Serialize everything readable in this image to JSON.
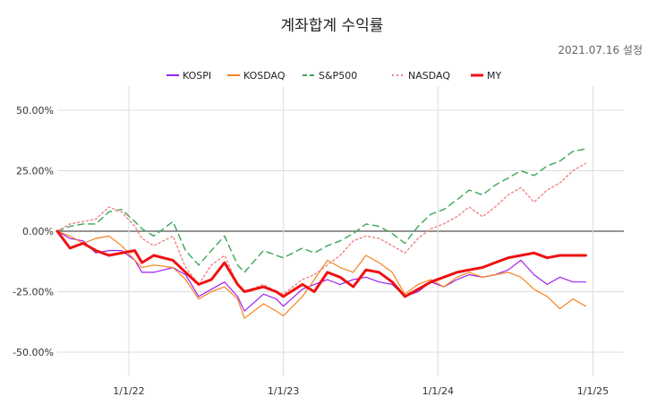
{
  "chart_data": {
    "type": "line",
    "title": "계좌합계 수익률",
    "subtitle": "2021.07.16 설정",
    "x_ticks": [
      "1/1/22",
      "1/1/23",
      "1/1/24",
      "1/1/25"
    ],
    "x_tick_dates": [
      "2022-01-01",
      "2023-01-01",
      "2024-01-01",
      "2025-01-01"
    ],
    "xlim": [
      "2021-07-16",
      "2025-03-15"
    ],
    "y_ticks": [
      "50.00%",
      "25.00%",
      "0.00%",
      "-25.00%",
      "-50.00%"
    ],
    "y_tick_values": [
      50,
      25,
      0,
      -25,
      -50
    ],
    "ylim": [
      -60,
      60
    ],
    "grid": true,
    "legend_position": "top",
    "series": [
      {
        "name": "KOSPI",
        "color": "#a020f0",
        "dash": "solid",
        "points": [
          [
            "2021-07-16",
            0
          ],
          [
            "2021-08-15",
            -3
          ],
          [
            "2021-09-15",
            -4
          ],
          [
            "2021-10-15",
            -9
          ],
          [
            "2021-11-15",
            -8
          ],
          [
            "2021-12-15",
            -8
          ],
          [
            "2022-01-15",
            -12
          ],
          [
            "2022-02-01",
            -17
          ],
          [
            "2022-03-01",
            -17
          ],
          [
            "2022-04-15",
            -15
          ],
          [
            "2022-05-15",
            -18
          ],
          [
            "2022-06-15",
            -27
          ],
          [
            "2022-07-15",
            -24
          ],
          [
            "2022-08-15",
            -21
          ],
          [
            "2022-09-15",
            -27
          ],
          [
            "2022-10-01",
            -33
          ],
          [
            "2022-11-15",
            -26
          ],
          [
            "2022-12-15",
            -28
          ],
          [
            "2023-01-01",
            -31
          ],
          [
            "2023-02-15",
            -24
          ],
          [
            "2023-03-15",
            -22
          ],
          [
            "2023-04-15",
            -20
          ],
          [
            "2023-05-15",
            -22
          ],
          [
            "2023-06-15",
            -20
          ],
          [
            "2023-07-15",
            -19
          ],
          [
            "2023-08-15",
            -21
          ],
          [
            "2023-09-15",
            -22
          ],
          [
            "2023-10-15",
            -27
          ],
          [
            "2023-11-15",
            -25
          ],
          [
            "2023-12-15",
            -21
          ],
          [
            "2024-01-15",
            -23
          ],
          [
            "2024-02-15",
            -20
          ],
          [
            "2024-03-15",
            -18
          ],
          [
            "2024-04-15",
            -19
          ],
          [
            "2024-05-15",
            -18
          ],
          [
            "2024-06-15",
            -16
          ],
          [
            "2024-07-15",
            -12
          ],
          [
            "2024-08-15",
            -18
          ],
          [
            "2024-09-15",
            -22
          ],
          [
            "2024-10-15",
            -19
          ],
          [
            "2024-11-15",
            -21
          ],
          [
            "2024-12-15",
            -21
          ]
        ]
      },
      {
        "name": "KOSDAQ",
        "color": "#f5821f",
        "dash": "solid",
        "points": [
          [
            "2021-07-16",
            0
          ],
          [
            "2021-08-15",
            -2
          ],
          [
            "2021-09-15",
            -5
          ],
          [
            "2021-10-15",
            -3
          ],
          [
            "2021-11-15",
            -2
          ],
          [
            "2021-12-15",
            -6
          ],
          [
            "2022-01-15",
            -12
          ],
          [
            "2022-02-01",
            -15
          ],
          [
            "2022-03-01",
            -14
          ],
          [
            "2022-04-15",
            -15
          ],
          [
            "2022-05-15",
            -20
          ],
          [
            "2022-06-15",
            -28
          ],
          [
            "2022-07-15",
            -25
          ],
          [
            "2022-08-15",
            -23
          ],
          [
            "2022-09-15",
            -28
          ],
          [
            "2022-10-01",
            -36
          ],
          [
            "2022-11-15",
            -30
          ],
          [
            "2022-12-15",
            -33
          ],
          [
            "2023-01-01",
            -35
          ],
          [
            "2023-02-15",
            -27
          ],
          [
            "2023-03-15",
            -20
          ],
          [
            "2023-04-15",
            -12
          ],
          [
            "2023-05-15",
            -15
          ],
          [
            "2023-06-15",
            -17
          ],
          [
            "2023-07-15",
            -10
          ],
          [
            "2023-08-15",
            -13
          ],
          [
            "2023-09-15",
            -17
          ],
          [
            "2023-10-15",
            -26
          ],
          [
            "2023-11-15",
            -22
          ],
          [
            "2023-12-15",
            -20
          ],
          [
            "2024-01-15",
            -23
          ],
          [
            "2024-02-15",
            -19
          ],
          [
            "2024-03-15",
            -17
          ],
          [
            "2024-04-15",
            -19
          ],
          [
            "2024-05-15",
            -18
          ],
          [
            "2024-06-15",
            -17
          ],
          [
            "2024-07-15",
            -19
          ],
          [
            "2024-08-15",
            -24
          ],
          [
            "2024-09-15",
            -27
          ],
          [
            "2024-10-15",
            -32
          ],
          [
            "2024-11-15",
            -28
          ],
          [
            "2024-12-15",
            -31
          ]
        ]
      },
      {
        "name": "S&P500",
        "color": "#3aa655",
        "dash": "dashed",
        "points": [
          [
            "2021-07-16",
            0
          ],
          [
            "2021-08-15",
            2
          ],
          [
            "2021-09-15",
            3
          ],
          [
            "2021-10-15",
            3
          ],
          [
            "2021-11-15",
            8
          ],
          [
            "2021-12-15",
            9
          ],
          [
            "2022-01-15",
            4
          ],
          [
            "2022-02-01",
            1
          ],
          [
            "2022-03-01",
            -2
          ],
          [
            "2022-04-15",
            4
          ],
          [
            "2022-05-15",
            -8
          ],
          [
            "2022-06-15",
            -14
          ],
          [
            "2022-07-15",
            -8
          ],
          [
            "2022-08-15",
            -2
          ],
          [
            "2022-09-15",
            -14
          ],
          [
            "2022-10-01",
            -17
          ],
          [
            "2022-11-15",
            -8
          ],
          [
            "2022-12-15",
            -10
          ],
          [
            "2023-01-01",
            -11
          ],
          [
            "2023-02-15",
            -7
          ],
          [
            "2023-03-15",
            -9
          ],
          [
            "2023-04-15",
            -6
          ],
          [
            "2023-05-15",
            -4
          ],
          [
            "2023-06-15",
            -1
          ],
          [
            "2023-07-15",
            3
          ],
          [
            "2023-08-15",
            2
          ],
          [
            "2023-09-15",
            -1
          ],
          [
            "2023-10-15",
            -5
          ],
          [
            "2023-11-15",
            2
          ],
          [
            "2023-12-15",
            7
          ],
          [
            "2024-01-15",
            9
          ],
          [
            "2024-02-15",
            13
          ],
          [
            "2024-03-15",
            17
          ],
          [
            "2024-04-15",
            15
          ],
          [
            "2024-05-15",
            19
          ],
          [
            "2024-06-15",
            22
          ],
          [
            "2024-07-15",
            25
          ],
          [
            "2024-08-15",
            23
          ],
          [
            "2024-09-15",
            27
          ],
          [
            "2024-10-15",
            29
          ],
          [
            "2024-11-15",
            33
          ],
          [
            "2024-12-15",
            34
          ]
        ]
      },
      {
        "name": "NASDAQ",
        "color": "#f08080",
        "dash": "dotted",
        "points": [
          [
            "2021-07-16",
            0
          ],
          [
            "2021-08-15",
            3
          ],
          [
            "2021-09-15",
            4
          ],
          [
            "2021-10-15",
            5
          ],
          [
            "2021-11-15",
            10
          ],
          [
            "2021-12-15",
            8
          ],
          [
            "2022-01-15",
            2
          ],
          [
            "2022-02-01",
            -3
          ],
          [
            "2022-03-01",
            -6
          ],
          [
            "2022-04-15",
            -2
          ],
          [
            "2022-05-15",
            -15
          ],
          [
            "2022-06-15",
            -22
          ],
          [
            "2022-07-15",
            -14
          ],
          [
            "2022-08-15",
            -10
          ],
          [
            "2022-09-15",
            -22
          ],
          [
            "2022-10-01",
            -25
          ],
          [
            "2022-11-15",
            -22
          ],
          [
            "2022-12-15",
            -25
          ],
          [
            "2023-01-01",
            -26
          ],
          [
            "2023-02-15",
            -20
          ],
          [
            "2023-03-15",
            -18
          ],
          [
            "2023-04-15",
            -14
          ],
          [
            "2023-05-15",
            -10
          ],
          [
            "2023-06-15",
            -4
          ],
          [
            "2023-07-15",
            -2
          ],
          [
            "2023-08-15",
            -3
          ],
          [
            "2023-09-15",
            -6
          ],
          [
            "2023-10-15",
            -9
          ],
          [
            "2023-11-15",
            -3
          ],
          [
            "2023-12-15",
            1
          ],
          [
            "2024-01-15",
            3
          ],
          [
            "2024-02-15",
            6
          ],
          [
            "2024-03-15",
            10
          ],
          [
            "2024-04-15",
            6
          ],
          [
            "2024-05-15",
            10
          ],
          [
            "2024-06-15",
            15
          ],
          [
            "2024-07-15",
            18
          ],
          [
            "2024-08-15",
            12
          ],
          [
            "2024-09-15",
            17
          ],
          [
            "2024-10-15",
            20
          ],
          [
            "2024-11-15",
            25
          ],
          [
            "2024-12-15",
            28
          ]
        ]
      },
      {
        "name": "MY",
        "color": "#ee1111",
        "dash": "solid",
        "points": [
          [
            "2021-07-16",
            0
          ],
          [
            "2021-08-15",
            -7
          ],
          [
            "2021-09-15",
            -5
          ],
          [
            "2021-10-15",
            -8
          ],
          [
            "2021-11-15",
            -10
          ],
          [
            "2021-12-15",
            -9
          ],
          [
            "2022-01-15",
            -8
          ],
          [
            "2022-02-01",
            -13
          ],
          [
            "2022-03-01",
            -10
          ],
          [
            "2022-04-15",
            -12
          ],
          [
            "2022-05-15",
            -17
          ],
          [
            "2022-06-15",
            -22
          ],
          [
            "2022-07-15",
            -20
          ],
          [
            "2022-08-15",
            -13
          ],
          [
            "2022-09-15",
            -22
          ],
          [
            "2022-10-01",
            -25
          ],
          [
            "2022-11-15",
            -23
          ],
          [
            "2022-12-15",
            -25
          ],
          [
            "2023-01-01",
            -27
          ],
          [
            "2023-02-15",
            -22
          ],
          [
            "2023-03-15",
            -25
          ],
          [
            "2023-04-15",
            -17
          ],
          [
            "2023-05-15",
            -19
          ],
          [
            "2023-06-15",
            -23
          ],
          [
            "2023-07-15",
            -16
          ],
          [
            "2023-08-15",
            -17
          ],
          [
            "2023-09-15",
            -21
          ],
          [
            "2023-10-15",
            -27
          ],
          [
            "2023-11-15",
            -24
          ],
          [
            "2023-12-15",
            -21
          ],
          [
            "2024-01-15",
            -19
          ],
          [
            "2024-02-15",
            -17
          ],
          [
            "2024-03-15",
            -16
          ],
          [
            "2024-04-15",
            -15
          ],
          [
            "2024-05-15",
            -13
          ],
          [
            "2024-06-15",
            -11
          ],
          [
            "2024-07-15",
            -10
          ],
          [
            "2024-08-15",
            -9
          ],
          [
            "2024-09-15",
            -11
          ],
          [
            "2024-10-15",
            -10
          ],
          [
            "2024-11-15",
            -10
          ],
          [
            "2024-12-15",
            -10
          ]
        ]
      }
    ]
  }
}
